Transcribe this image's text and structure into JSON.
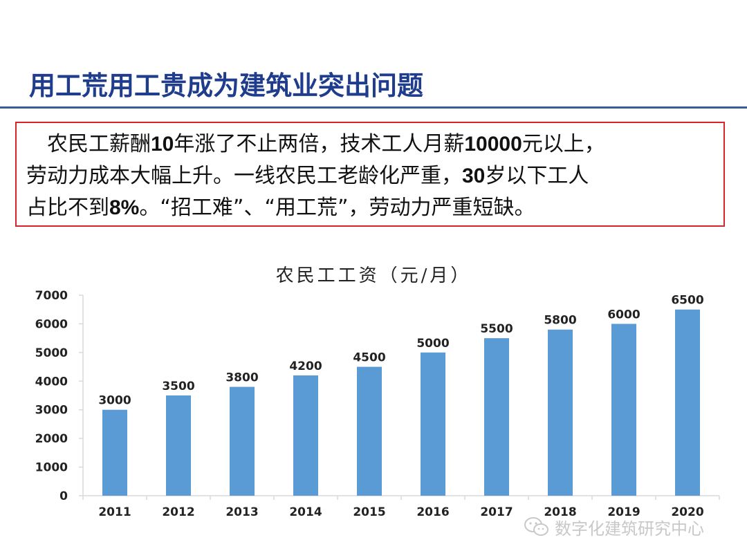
{
  "slide": {
    "title": "用工荒用工贵成为建筑业突出问题"
  },
  "summary": {
    "line1_a": "农民工薪酬",
    "line1_b": "10",
    "line1_c": "年涨了不止两倍，技术工人月薪",
    "line1_d": "10000",
    "line1_e": "元以上，",
    "line2_a": "劳动力成本大幅上升。一线农民工老龄化严重，",
    "line2_b": "30",
    "line2_c": "岁以下工人",
    "line3_a": "占比不到",
    "line3_b": "8%",
    "line3_c": "。“招工难”、“用工荒”，劳动力严重短缺。"
  },
  "watermark": {
    "text": "数字化建筑研究中心",
    "icon": "wechat-icon"
  },
  "colors": {
    "title": "#1f3d8c",
    "rule": "#3a5a98",
    "box_border": "#d9232a",
    "bar": "#5b9bd5",
    "axis": "#d9d9d9"
  },
  "chart_data": {
    "type": "bar",
    "title": "农民工工资（元/月）",
    "categories": [
      "2011",
      "2012",
      "2013",
      "2014",
      "2015",
      "2016",
      "2017",
      "2018",
      "2019",
      "2020"
    ],
    "values": [
      3000,
      3500,
      3800,
      4200,
      4500,
      5000,
      5500,
      5800,
      6000,
      6500
    ],
    "value_labels": [
      "3000",
      "3500",
      "3800",
      "4200",
      "4500",
      "5000",
      "5500",
      "5800",
      "6000",
      "6500"
    ],
    "y_ticks": [
      0,
      1000,
      2000,
      3000,
      4000,
      5000,
      6000,
      7000
    ],
    "y_tick_labels": [
      "0",
      "1000",
      "2000",
      "3000",
      "4000",
      "5000",
      "6000",
      "7000"
    ],
    "ylim": [
      0,
      7000
    ],
    "xlabel": "",
    "ylabel": "",
    "grid": false,
    "legend": "none"
  }
}
